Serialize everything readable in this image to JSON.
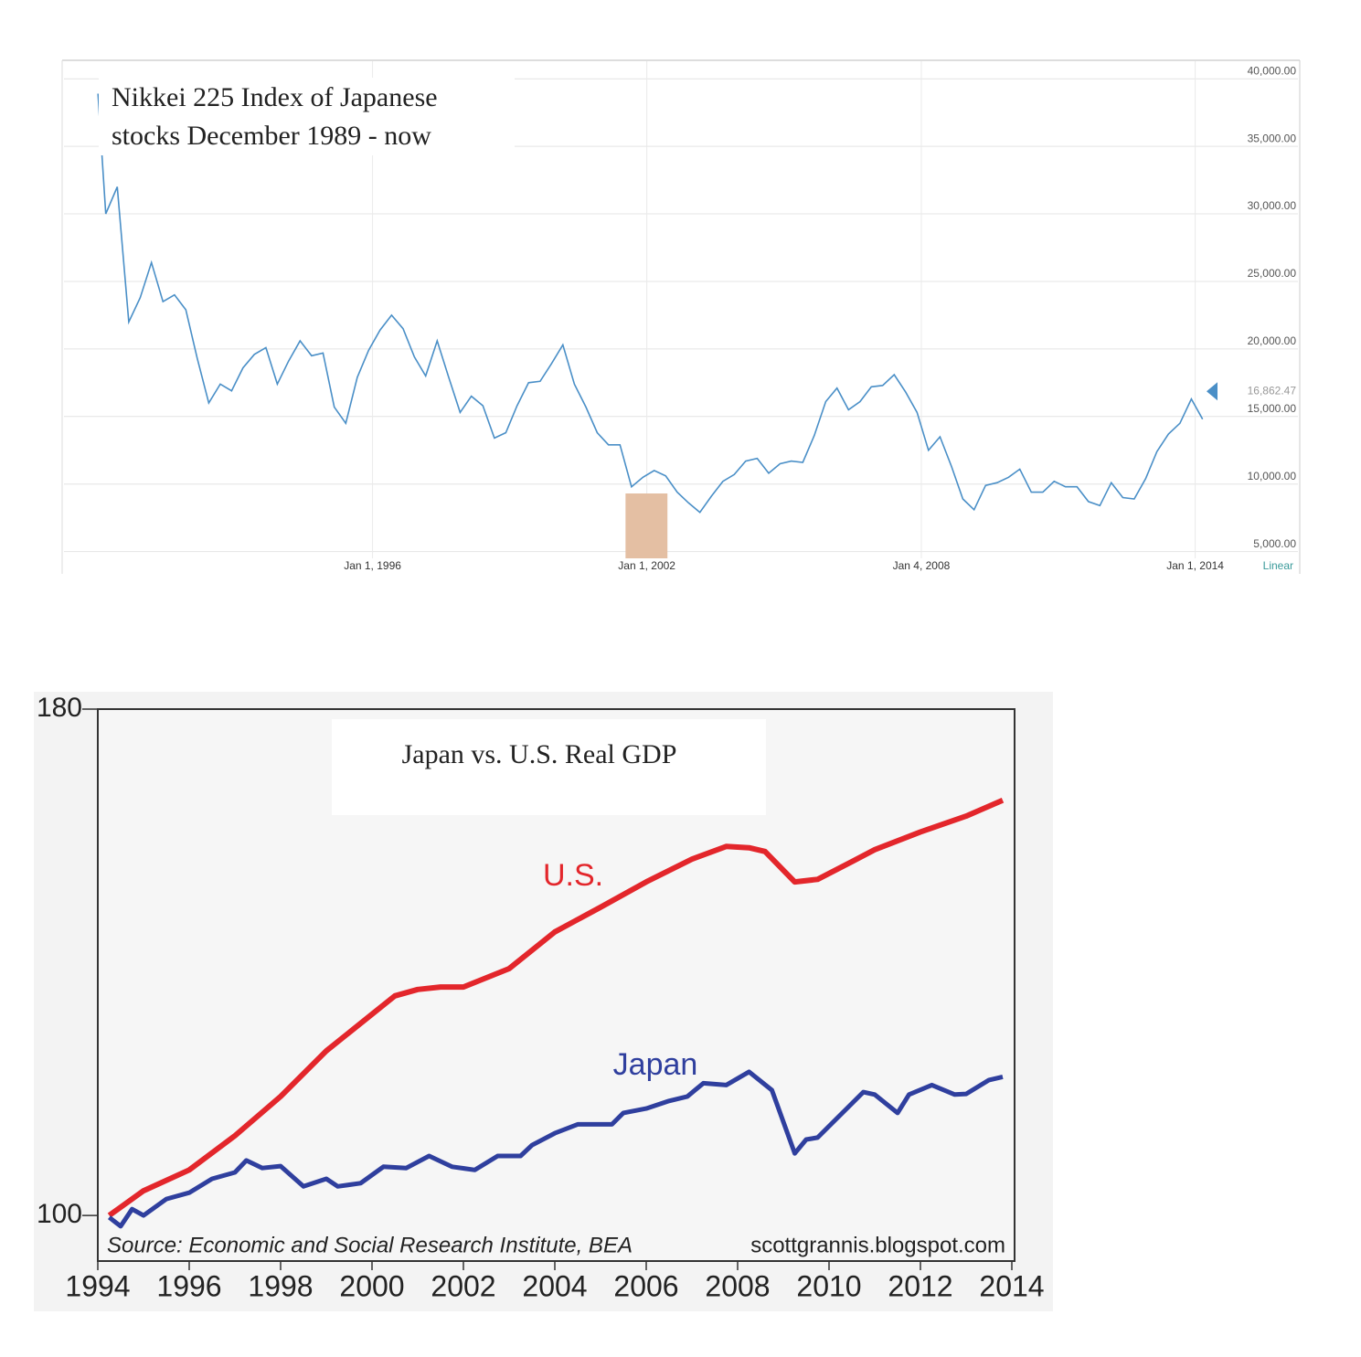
{
  "chart_data": [
    {
      "type": "line",
      "title": [
        "Nikkei 225 Index of Japanese",
        "stocks December 1989 - now"
      ],
      "color": "#4a8fc7",
      "x": [
        "1989-12-29",
        "1990-03-01",
        "1990-06-01",
        "1990-09-01",
        "1990-12-01",
        "1991-03-01",
        "1991-06-01",
        "1991-09-01",
        "1991-12-01",
        "1992-03-01",
        "1992-06-01",
        "1992-09-01",
        "1992-12-01",
        "1993-03-01",
        "1993-06-01",
        "1993-09-01",
        "1993-12-01",
        "1994-03-01",
        "1994-06-01",
        "1994-09-01",
        "1994-12-01",
        "1995-03-01",
        "1995-06-01",
        "1995-09-01",
        "1995-12-01",
        "1996-03-01",
        "1996-06-01",
        "1996-09-01",
        "1996-12-01",
        "1997-03-01",
        "1997-06-01",
        "1997-09-01",
        "1997-12-01",
        "1998-03-01",
        "1998-06-01",
        "1998-09-01",
        "1998-12-01",
        "1999-03-01",
        "1999-06-01",
        "1999-09-01",
        "1999-12-01",
        "2000-03-01",
        "2000-06-01",
        "2000-09-01",
        "2000-12-01",
        "2001-03-01",
        "2001-06-01",
        "2001-09-01",
        "2001-12-01",
        "2002-03-01",
        "2002-06-01",
        "2002-09-01",
        "2002-12-01",
        "2003-03-01",
        "2003-06-01",
        "2003-09-01",
        "2003-12-01",
        "2004-03-01",
        "2004-06-01",
        "2004-09-01",
        "2004-12-01",
        "2005-03-01",
        "2005-06-01",
        "2005-09-01",
        "2005-12-01",
        "2006-03-01",
        "2006-06-01",
        "2006-09-01",
        "2006-12-01",
        "2007-03-01",
        "2007-06-01",
        "2007-09-01",
        "2007-12-01",
        "2008-03-01",
        "2008-06-01",
        "2008-09-01",
        "2008-12-01",
        "2009-03-01",
        "2009-06-01",
        "2009-09-01",
        "2009-12-01",
        "2010-03-01",
        "2010-06-01",
        "2010-09-01",
        "2010-12-01",
        "2011-03-01",
        "2011-06-01",
        "2011-09-01",
        "2011-12-01",
        "2012-03-01",
        "2012-06-01",
        "2012-09-01",
        "2012-12-01",
        "2013-03-01",
        "2013-06-01",
        "2013-09-01",
        "2013-12-01",
        "2014-03-01"
      ],
      "values": [
        38900,
        30000,
        32000,
        22000,
        23800,
        26400,
        23500,
        24000,
        22900,
        19300,
        16000,
        17400,
        16900,
        18600,
        19600,
        20100,
        17400,
        19100,
        20600,
        19500,
        19700,
        15700,
        14500,
        17900,
        19900,
        21400,
        22500,
        21500,
        19400,
        18000,
        20600,
        17900,
        15300,
        16500,
        15800,
        13400,
        13800,
        15800,
        17500,
        17600,
        18900,
        20300,
        17400,
        15700,
        13800,
        12900,
        12900,
        9800,
        10500,
        11000,
        10600,
        9400,
        8600,
        7900,
        9100,
        10200,
        10700,
        11700,
        11900,
        10800,
        11500,
        11700,
        11600,
        13600,
        16100,
        17100,
        15500,
        16100,
        17200,
        17300,
        18100,
        16800,
        15300,
        12500,
        13500,
        11300,
        8900,
        8100,
        9900,
        10100,
        10500,
        11100,
        9400,
        9400,
        10200,
        9800,
        9800,
        8700,
        8400,
        10100,
        9000,
        8900,
        10400,
        12400,
        13700,
        14500,
        16300,
        14800
      ],
      "xlim": [
        "1989-04-01",
        "2016-04-01"
      ],
      "xticks": [
        {
          "value": "1996-01-01",
          "label": "Jan 1, 1996"
        },
        {
          "value": "2002-01-01",
          "label": "Jan 1, 2002"
        },
        {
          "value": "2008-01-04",
          "label": "Jan 4, 2008"
        },
        {
          "value": "2014-01-01",
          "label": "Jan 1, 2014"
        }
      ],
      "ylim": [
        4500,
        41300
      ],
      "yticks": [
        {
          "value": 5000,
          "label": "5,000.00"
        },
        {
          "value": 10000,
          "label": "10,000.00"
        },
        {
          "value": 15000,
          "label": "15,000.00"
        },
        {
          "value": 20000,
          "label": "20,000.00"
        },
        {
          "value": 25000,
          "label": "25,000.00"
        },
        {
          "value": 30000,
          "label": "30,000.00"
        },
        {
          "value": 35000,
          "label": "35,000.00"
        },
        {
          "value": 40000,
          "label": "40,000.00"
        }
      ],
      "last_value": {
        "value": 16862.47,
        "label": "16,862.47"
      },
      "scale_label": "Linear",
      "shaded_region": [
        "2001-07-15",
        "2002-06-15"
      ],
      "grid": true
    },
    {
      "type": "line",
      "title": "Japan vs. U.S. Real GDP",
      "series": [
        {
          "name": "U.S.",
          "color": "#e3262b",
          "x": [
            1994.25,
            1995,
            1996,
            1997,
            1998,
            1999,
            2000,
            2000.5,
            2001,
            2001.5,
            2002,
            2003,
            2004,
            2005,
            2006,
            2007,
            2007.75,
            2008.25,
            2008.6,
            2009.25,
            2009.75,
            2010.5,
            2011,
            2012,
            2013,
            2013.8
          ],
          "values": [
            100,
            103.9,
            107.2,
            112.6,
            118.8,
            126.0,
            131.8,
            134.7,
            135.7,
            136.1,
            136.1,
            139.0,
            144.8,
            148.7,
            152.7,
            156.3,
            158.3,
            158.1,
            157.5,
            152.7,
            153.1,
            155.9,
            157.8,
            160.6,
            163.1,
            165.6
          ]
        },
        {
          "name": "Japan",
          "color": "#2f3f9e",
          "x": [
            1994.25,
            1994.5,
            1994.75,
            1995,
            1995.5,
            1996,
            1996.5,
            1997,
            1997.25,
            1997.6,
            1998,
            1998.5,
            1999,
            1999.25,
            1999.75,
            2000.25,
            2000.75,
            2001.25,
            2001.75,
            2002.25,
            2002.75,
            2003.25,
            2003.5,
            2004,
            2004.5,
            2005.25,
            2005.5,
            2006,
            2006.5,
            2006.9,
            2007.25,
            2007.75,
            2008.25,
            2008.75,
            2009.25,
            2009.5,
            2009.75,
            2010.25,
            2010.75,
            2011,
            2011.5,
            2011.75,
            2012.25,
            2012.75,
            2013,
            2013.5,
            2013.8
          ],
          "values": [
            99.7,
            98.3,
            101.0,
            100,
            102.6,
            103.6,
            105.8,
            106.8,
            108.7,
            107.5,
            107.8,
            104.6,
            105.8,
            104.6,
            105.1,
            107.7,
            107.5,
            109.4,
            107.7,
            107.2,
            109.4,
            109.4,
            111.1,
            113.0,
            114.4,
            114.4,
            116.2,
            116.9,
            118.1,
            118.8,
            120.9,
            120.6,
            122.7,
            119.8,
            109.8,
            112.0,
            112.3,
            115.9,
            119.5,
            119.1,
            116.2,
            119.1,
            120.6,
            119.1,
            119.2,
            121.4,
            121.9
          ]
        }
      ],
      "xlim": [
        1994,
        2014
      ],
      "xticks": [
        1994,
        1996,
        1998,
        2000,
        2002,
        2004,
        2006,
        2008,
        2010,
        2012,
        2014
      ],
      "ylim": [
        92.8,
        180
      ],
      "yticks": [
        100,
        180
      ],
      "source": "Source:  Economic and Social Research Institute, BEA",
      "credit": "scottgrannis.blogspot.com"
    }
  ]
}
